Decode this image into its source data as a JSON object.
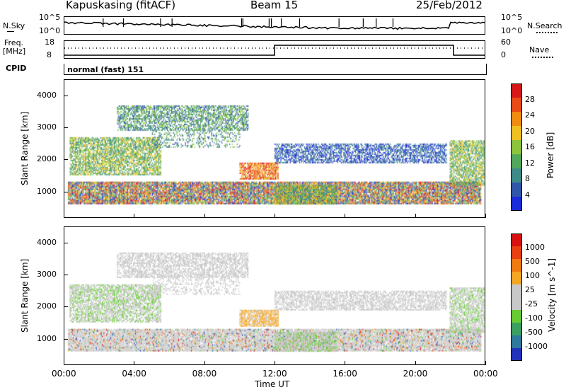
{
  "header": {
    "station": "Kapuskasing (fitACF)",
    "beam": "Beam 15",
    "date": "25/Feb/2012"
  },
  "side_labels": {
    "nsky": "N.Sky",
    "nsky_top": "10^5",
    "nsky_bot": "10^0",
    "nsearch": "N.Search",
    "nsearch_top": "10^5",
    "nsearch_bot": "10^0",
    "freq_line1": "Freq.",
    "freq_line2": "[MHz]",
    "freq_top": "18",
    "freq_bot": "8",
    "nave": "Nave",
    "nave_top": "60",
    "nave_bot": "0",
    "cpid": "CPID",
    "cpid_value": "normal (fast) 151"
  },
  "chart_data": [
    {
      "type": "heatmap",
      "name": "power",
      "ylabel": "Slant Range [km]",
      "yticks": [
        "4000",
        "3000",
        "2000",
        "1000"
      ],
      "ylim": [
        180,
        4500
      ],
      "colorbar_label": "Power [dB]",
      "colorbar_ticks": [
        "28",
        "24",
        "20",
        "16",
        "12",
        "8",
        "4"
      ],
      "colors": [
        "#1a2bdc",
        "#2f56a8",
        "#3d8b88",
        "#52a85a",
        "#8cc43c",
        "#f0c020",
        "#f08c10",
        "#e84c14",
        "#d81818"
      ]
    },
    {
      "type": "heatmap",
      "name": "velocity",
      "ylabel": "Slant Range [km]",
      "yticks": [
        "4000",
        "3000",
        "2000",
        "1000"
      ],
      "ylim": [
        180,
        4500
      ],
      "colorbar_label": "Velocity [m s^-1]",
      "colorbar_ticks": [
        "1000",
        "500",
        "100",
        "25",
        "-25",
        "-100",
        "-500",
        "-1000"
      ],
      "colors": [
        "#2233bb",
        "#2e7a9c",
        "#3aa060",
        "#66cc33",
        "#c8c8c8",
        "#c8c8c8",
        "#f5a623",
        "#f07a10",
        "#e84010",
        "#d81010"
      ]
    }
  ],
  "xaxis": {
    "label": "Time UT",
    "ticks": [
      "00:00",
      "04:00",
      "08:00",
      "12:00",
      "16:00",
      "20:00",
      "00:00"
    ],
    "range_hours": [
      0,
      24
    ]
  },
  "colors": {
    "axis": "#000000",
    "background": "#ffffff"
  }
}
